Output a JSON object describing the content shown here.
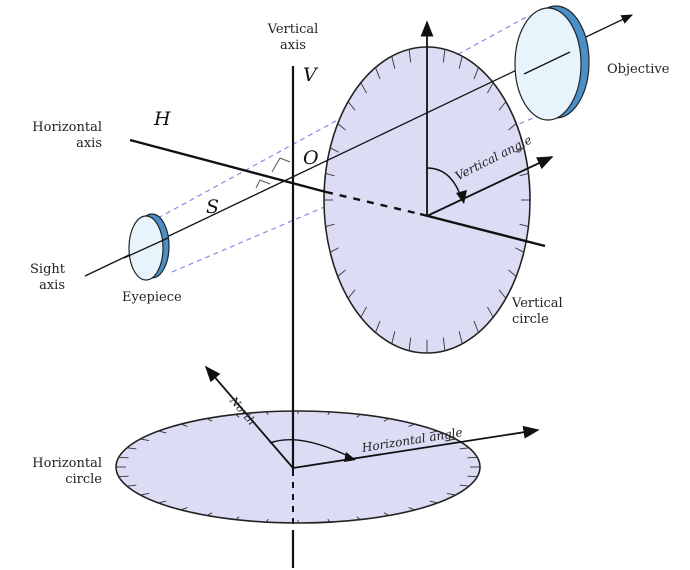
{
  "labels": {
    "vertical_axis_line1": "Vertical",
    "vertical_axis_line2": "axis",
    "objective": "Objective",
    "horizontal_axis_line1": "Horizontal",
    "horizontal_axis_line2": "axis",
    "sight_axis_line1": "Sight",
    "sight_axis_line2": "axis",
    "eyepiece": "Eyepiece",
    "vertical_circle_line1": "Vertical",
    "vertical_circle_line2": "circle",
    "horizontal_circle_line1": "Horizontal",
    "horizontal_circle_line2": "circle",
    "vertical_angle": "Vertical angle",
    "horizontal_angle": "Horizontal angle",
    "north": "North"
  },
  "symbols": {
    "V": "V",
    "H": "H",
    "O": "O",
    "S": "S"
  },
  "colors": {
    "circle_fill": "#dcdcf5",
    "lens_fill": "#e8f4fb",
    "lens_rim": "#4a90c8",
    "dashed_line": "#8a8ae6",
    "stroke": "#222222"
  }
}
